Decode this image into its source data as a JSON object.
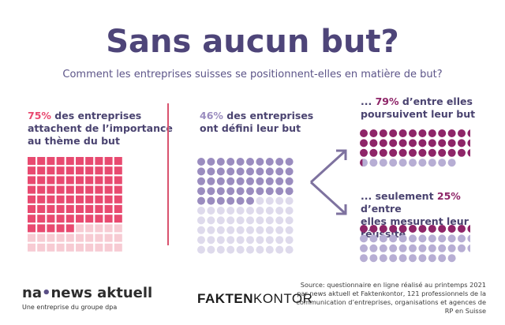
{
  "title": "Sans aucun but?",
  "subtitle": "Comment les entreprises suisses se positionnent-elles en matière de but?",
  "stats": {
    "s1": {
      "pct": "75%",
      "text_inline": " des entreprises",
      "text_rest": "attachent de l’importance au thème du but"
    },
    "s2": {
      "pct": "46%",
      "text_inline": " des entreprises",
      "text_rest": "ont défini leur but"
    },
    "s3": {
      "prefix": "... ",
      "pct": "79%",
      "text_inline": " d’entre elles",
      "text_rest": "poursuivent leur but"
    },
    "s4": {
      "prefix": "... seulement ",
      "pct": "25%",
      "text_inline": " d’entre",
      "text_rest": "elles mesurent leur réussite"
    }
  },
  "footer": {
    "logo_a": "na",
    "logo_dot": "•",
    "logo_b": "news aktuell",
    "tagline": "Une entreprise du groupe dpa",
    "faktenkontor_a": "FAKTEN",
    "faktenkontor_b": "KONTOR",
    "source": "Source: questionnaire en ligne réalisé au printemps 2021 par news aktuell et Faktenkontor, 121 professionnels de la communication d’entreprises, organisations et agences de RP en Suisse"
  },
  "colors": {
    "title": "#4e4579",
    "pink_filled": "#e84a70",
    "pink_empty": "#f7cbd3",
    "purple_filled": "#9a8cbf",
    "purple_empty": "#dedaec",
    "magenta_filled": "#8e2568",
    "magenta_empty": "#b7aed4",
    "divider": "#d9536e"
  },
  "chart_data": [
    {
      "type": "waffle",
      "shape": "square",
      "total": 100,
      "filled": 75,
      "label": "75% des entreprises attachent de l’importance au thème du but"
    },
    {
      "type": "waffle",
      "shape": "circle",
      "total": 100,
      "filled": 46,
      "label": "46% des entreprises ont défini leur but"
    },
    {
      "type": "waffle",
      "shape": "circle",
      "total": 46,
      "filled": 36.34,
      "label": "79% d’entre elles poursuivent leur but"
    },
    {
      "type": "waffle",
      "shape": "circle",
      "total": 46,
      "filled": 11.5,
      "label": "25% d’entre elles mesurent leur réussite"
    }
  ]
}
